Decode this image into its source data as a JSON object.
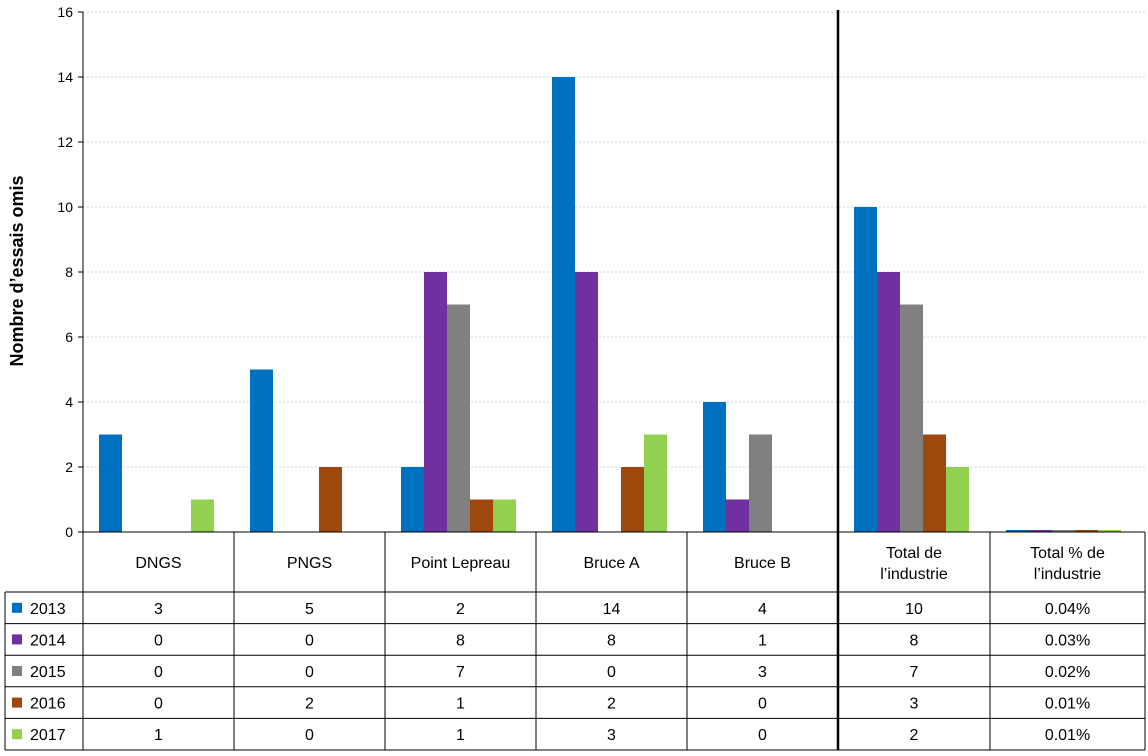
{
  "chart_data": {
    "type": "bar",
    "ylabel": "Nombre d’essais omis",
    "ylim": [
      0,
      16
    ],
    "ytick_step": 2,
    "grid": true,
    "legend": "table-rows",
    "categories": [
      "DNGS",
      "PNGS",
      "Point Lepreau",
      "Bruce A",
      "Bruce B",
      "Total de l’industrie",
      "Total % de l’industrie"
    ],
    "series": [
      {
        "name": "2013",
        "color": "#0070c0",
        "values": [
          3,
          5,
          2,
          14,
          4,
          10,
          0.04
        ],
        "labels": [
          "3",
          "5",
          "2",
          "14",
          "4",
          "10",
          "0.04%"
        ]
      },
      {
        "name": "2014",
        "color": "#7030a0",
        "values": [
          0,
          0,
          8,
          8,
          1,
          8,
          0.03
        ],
        "labels": [
          "0",
          "0",
          "8",
          "8",
          "1",
          "8",
          "0.03%"
        ]
      },
      {
        "name": "2015",
        "color": "#808080",
        "values": [
          0,
          0,
          7,
          0,
          3,
          7,
          0.02
        ],
        "labels": [
          "0",
          "0",
          "7",
          "0",
          "3",
          "7",
          "0.02%"
        ]
      },
      {
        "name": "2016",
        "color": "#9e480e",
        "values": [
          0,
          2,
          1,
          2,
          0,
          3,
          0.01
        ],
        "labels": [
          "0",
          "2",
          "1",
          "2",
          "0",
          "3",
          "0.01%"
        ]
      },
      {
        "name": "2017",
        "color": "#92d050",
        "values": [
          1,
          0,
          1,
          3,
          0,
          2,
          0.01
        ],
        "labels": [
          "1",
          "0",
          "1",
          "3",
          "0",
          "2",
          "0.01%"
        ]
      }
    ],
    "separator_after_category": 4
  }
}
